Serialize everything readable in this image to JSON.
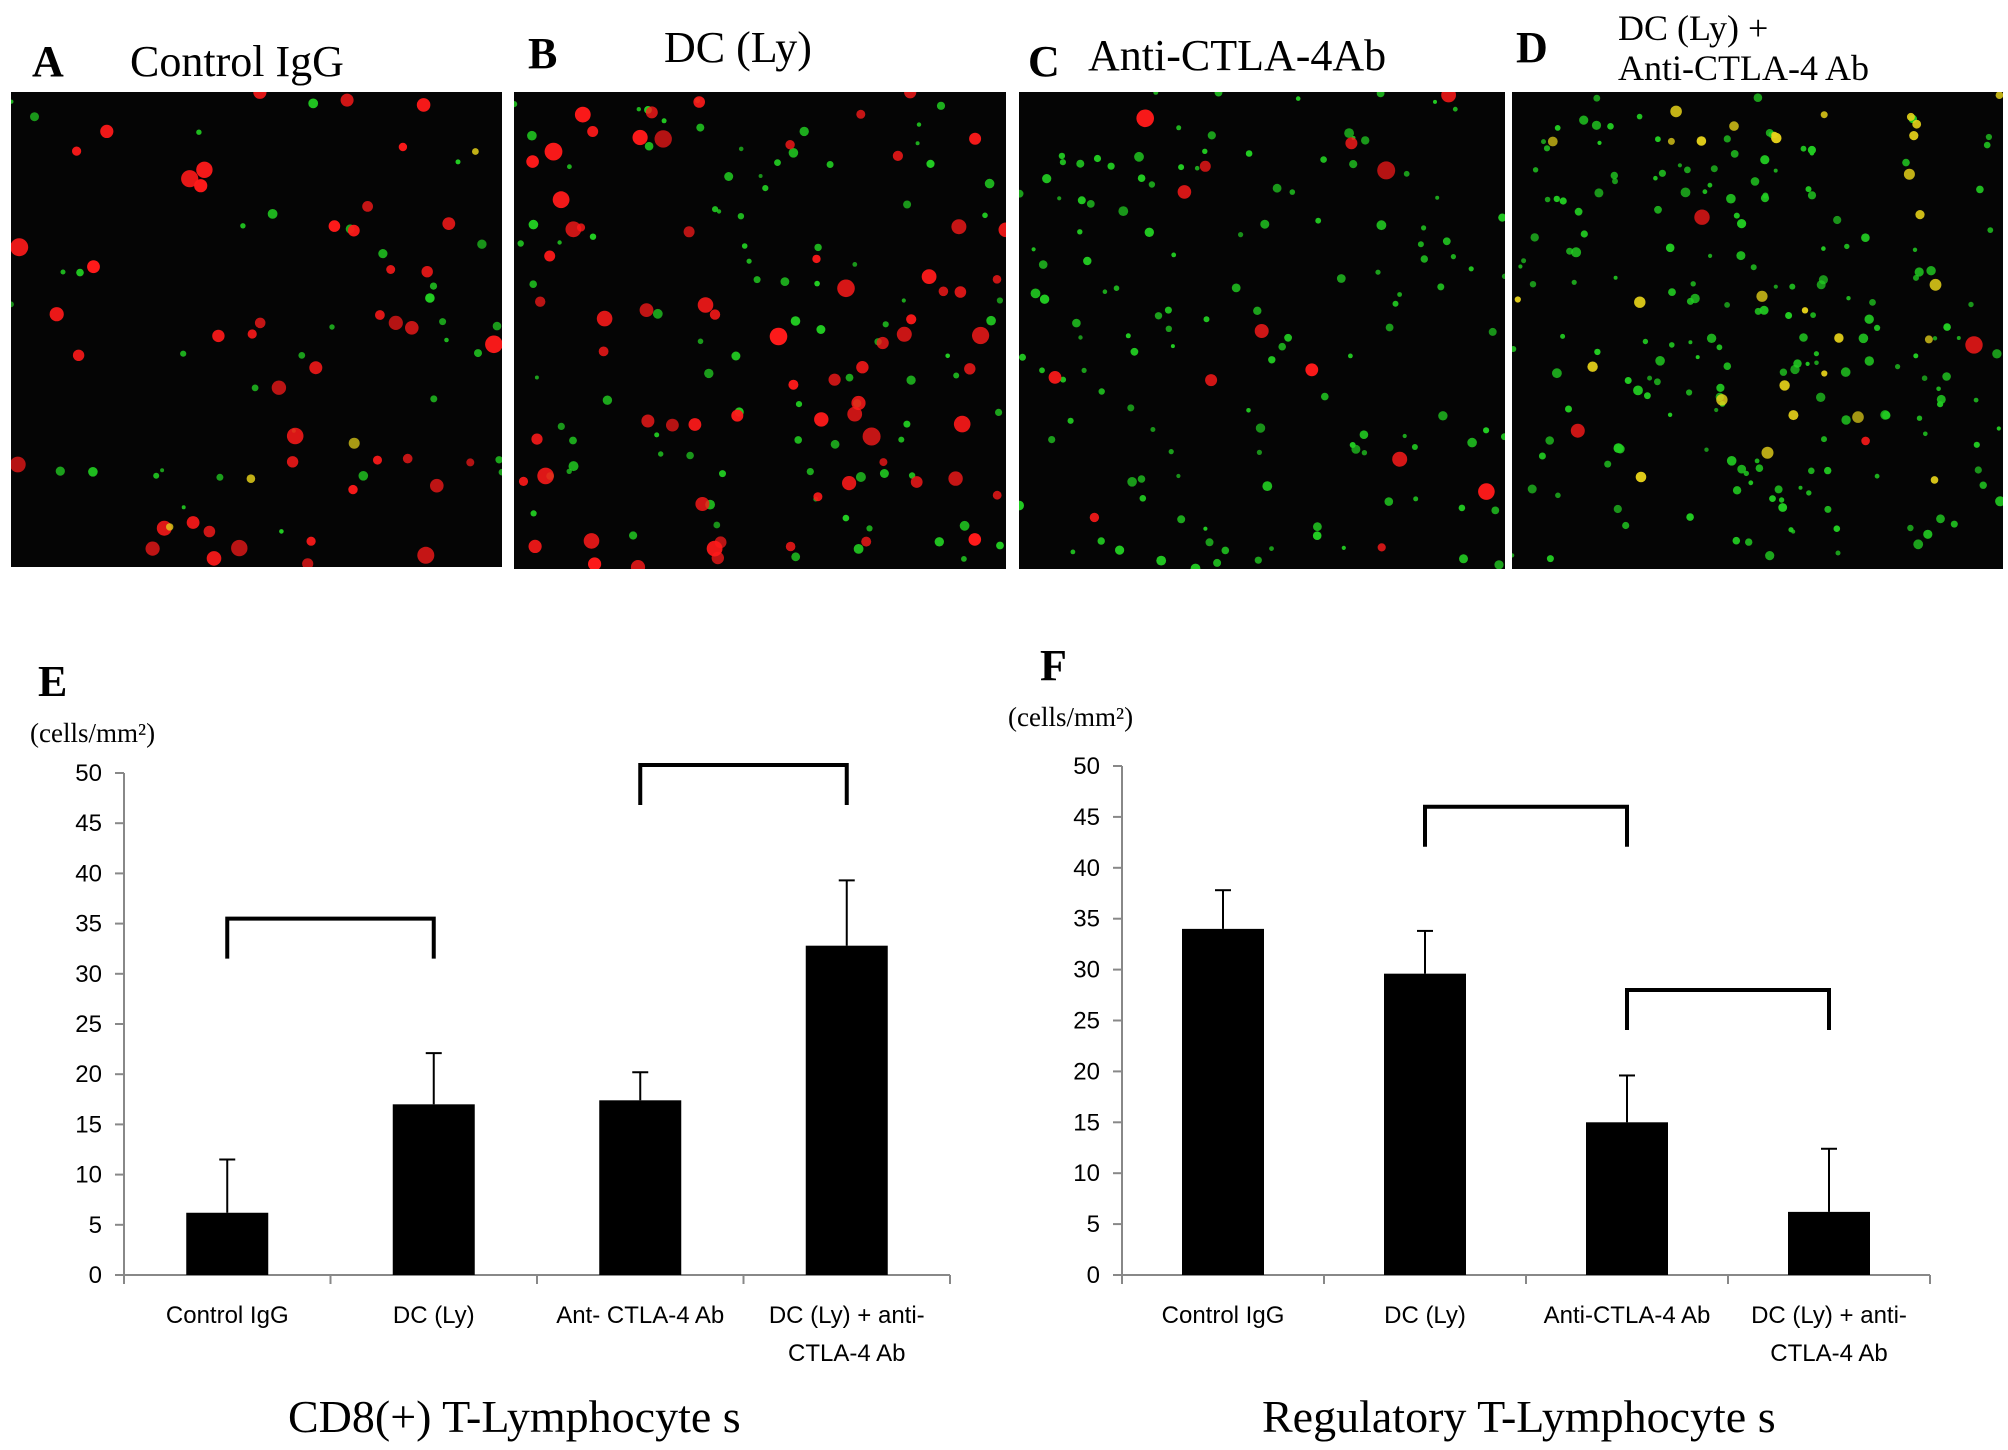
{
  "panels": {
    "A": {
      "letter": "A",
      "title": "Control IgG"
    },
    "B": {
      "letter": "B",
      "title": "DC (Ly)"
    },
    "C": {
      "letter": "C",
      "title": "Anti-CTLA-4Ab"
    },
    "D": {
      "letter": "D",
      "title_line1": "DC (Ly) +",
      "title_line2": "Anti-CTLA-4 Ab"
    },
    "E": {
      "letter": "E"
    },
    "F": {
      "letter": "F"
    }
  },
  "colors": {
    "red_cells": "#ff1a1a",
    "green_cells": "#22cc22",
    "yellow_cells": "#e6d21a",
    "bar": "#000000",
    "micro_bg": "#050505"
  },
  "chart_data": [
    {
      "type": "bar",
      "panel": "E",
      "title": "CD8(+) T-Lymphocyte s",
      "unit": "(cells/mm²)",
      "categories": [
        [
          "Control IgG"
        ],
        [
          "DC (Ly)"
        ],
        [
          "Ant- CTLA-4 Ab"
        ],
        [
          "DC (Ly) + anti-",
          "CTLA-4 Ab"
        ]
      ],
      "values": [
        6.2,
        17,
        17.4,
        32.8
      ],
      "errors": [
        5.3,
        5.1,
        2.8,
        6.5
      ],
      "ylim": [
        0,
        50
      ],
      "yticks": [
        0,
        5,
        10,
        15,
        20,
        25,
        30,
        35,
        40,
        45,
        50
      ],
      "brackets": [
        {
          "from": 0,
          "to": 1,
          "y": 35.5
        },
        {
          "from": 2,
          "to": 3,
          "y": 50.8
        }
      ]
    },
    {
      "type": "bar",
      "panel": "F",
      "title": "Regulatory T-Lymphocyte s",
      "unit": "(cells/mm²)",
      "categories": [
        [
          "Control IgG"
        ],
        [
          "DC (Ly)"
        ],
        [
          "Anti-CTLA-4 Ab"
        ],
        [
          "DC (Ly) + anti-",
          "CTLA-4 Ab"
        ]
      ],
      "values": [
        34,
        29.6,
        15,
        6.2
      ],
      "errors": [
        3.8,
        4.2,
        4.6,
        6.2
      ],
      "ylim": [
        0,
        50
      ],
      "yticks": [
        0,
        5,
        10,
        15,
        20,
        25,
        30,
        35,
        40,
        45,
        50
      ],
      "brackets": [
        {
          "from": 1,
          "to": 2,
          "y": 46
        },
        {
          "from": 2,
          "to": 3,
          "y": 28
        }
      ]
    }
  ]
}
